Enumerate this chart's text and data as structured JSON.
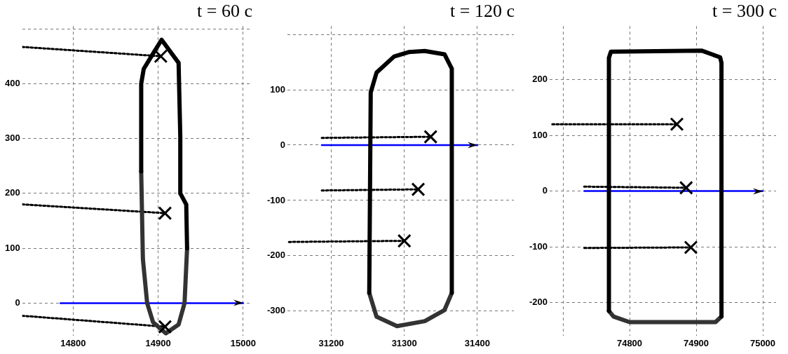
{
  "chart_data": [
    {
      "type": "line",
      "title": "t = 60 c",
      "xlim": [
        14740,
        15010
      ],
      "ylim": [
        -60,
        505
      ],
      "xticks": [
        14800,
        14900,
        15000
      ],
      "yticks": [
        0,
        100,
        200,
        300,
        400,
        {
          "value": 500,
          "label": null
        }
      ],
      "grid": true,
      "legend": false,
      "series": [
        {
          "color": "#000000",
          "x": [
            14880,
            14880,
            14883,
            14894,
            14904,
            14924,
            14926,
            14926,
            14933,
            14934
          ],
          "values": [
            240,
            400,
            427,
            455,
            480,
            438,
            303,
            200,
            180,
            100
          ]
        },
        {
          "color": "#333333",
          "x": [
            14880,
            14882,
            14887,
            14894,
            14909,
            14924,
            14931,
            14934
          ],
          "values": [
            240,
            80,
            0,
            -35,
            -55,
            -39,
            0,
            100
          ]
        },
        {
          "color": "#0000ff",
          "x": [
            14785,
            15000
          ],
          "values": [
            0,
            0
          ]
        },
        {
          "color": "#000000",
          "line_style": "dotted",
          "x": [
            14740,
            14903
          ],
          "values": [
            467,
            450
          ]
        },
        {
          "color": "#000000",
          "line_style": "dotted",
          "x": [
            14740,
            14908
          ],
          "values": [
            180,
            164
          ]
        },
        {
          "color": "#000000",
          "line_style": "dotted",
          "x": [
            14740,
            14908
          ],
          "values": [
            -23,
            -43
          ]
        },
        {
          "type": "scatter",
          "color": "#000000",
          "marker": "cross",
          "x": [
            14903,
            14908,
            14908
          ],
          "values": [
            450,
            164,
            -43
          ]
        }
      ]
    },
    {
      "type": "line",
      "title": "t = 120 c",
      "xlim": [
        31140,
        31450
      ],
      "ylim": [
        -345,
        215
      ],
      "xticks": [
        31200,
        31300,
        31400
      ],
      "yticks": [
        -300,
        -200,
        -100,
        0,
        100,
        {
          "value": 200,
          "label": null
        }
      ],
      "grid": true,
      "legend": false,
      "series": [
        {
          "color": "#000000",
          "x": [
            31252,
            31254,
            31262,
            31286,
            31306,
            31328,
            31355,
            31365,
            31365
          ],
          "values": [
            -267,
            95,
            131,
            160,
            168,
            170,
            164,
            138,
            -267
          ]
        },
        {
          "color": "#333333",
          "x": [
            31252,
            31262,
            31290,
            31328,
            31355,
            31365
          ],
          "values": [
            -267,
            -310,
            -327,
            -318,
            -298,
            -267
          ]
        },
        {
          "color": "#0000ff",
          "x": [
            31187,
            31400
          ],
          "values": [
            0,
            0
          ]
        },
        {
          "color": "#000000",
          "line_style": "dotted",
          "x": [
            31187,
            31336
          ],
          "values": [
            13,
            15
          ]
        },
        {
          "color": "#000000",
          "line_style": "dotted",
          "x": [
            31187,
            31319
          ],
          "values": [
            -82,
            -80
          ]
        },
        {
          "color": "#000000",
          "line_style": "dotted",
          "x": [
            31142,
            31300
          ],
          "values": [
            -175,
            -173
          ]
        },
        {
          "type": "scatter",
          "color": "#000000",
          "marker": "cross",
          "x": [
            31336,
            31319,
            31300
          ],
          "values": [
            15,
            -80,
            -173
          ]
        }
      ]
    },
    {
      "type": "line",
      "title": "t = 300 c",
      "xlim": [
        74680,
        75020
      ],
      "ylim": [
        -260,
        296
      ],
      "xticks": [
        {
          "value": 74700,
          "label": null
        },
        74800,
        74900,
        75000
      ],
      "yticks": [
        -200,
        -100,
        0,
        100,
        200
      ],
      "grid": true,
      "legend": false,
      "series": [
        {
          "color": "#000000",
          "x": [
            74769,
            74769,
            74772,
            74908,
            74936,
            74938,
            74938
          ],
          "values": [
            -215,
            239,
            250,
            252,
            240,
            230,
            -225
          ]
        },
        {
          "color": "#333333",
          "x": [
            74769,
            74776,
            74800,
            74929,
            74938
          ],
          "values": [
            -215,
            -225,
            -235,
            -235,
            -225
          ]
        },
        {
          "color": "#0000ff",
          "x": [
            74732,
            75000
          ],
          "values": [
            0,
            0
          ]
        },
        {
          "color": "#000000",
          "line_style": "dotted",
          "x": [
            74684,
            74871
          ],
          "values": [
            120,
            120
          ]
        },
        {
          "color": "#000000",
          "line_style": "dotted",
          "x": [
            74732,
            74885
          ],
          "values": [
            8,
            6
          ]
        },
        {
          "color": "#000000",
          "line_style": "dotted",
          "x": [
            74732,
            74892
          ],
          "values": [
            -102,
            -101
          ]
        },
        {
          "type": "scatter",
          "color": "#000000",
          "marker": "cross",
          "x": [
            74871,
            74885,
            74892
          ],
          "values": [
            120,
            6,
            -101
          ]
        }
      ]
    }
  ]
}
